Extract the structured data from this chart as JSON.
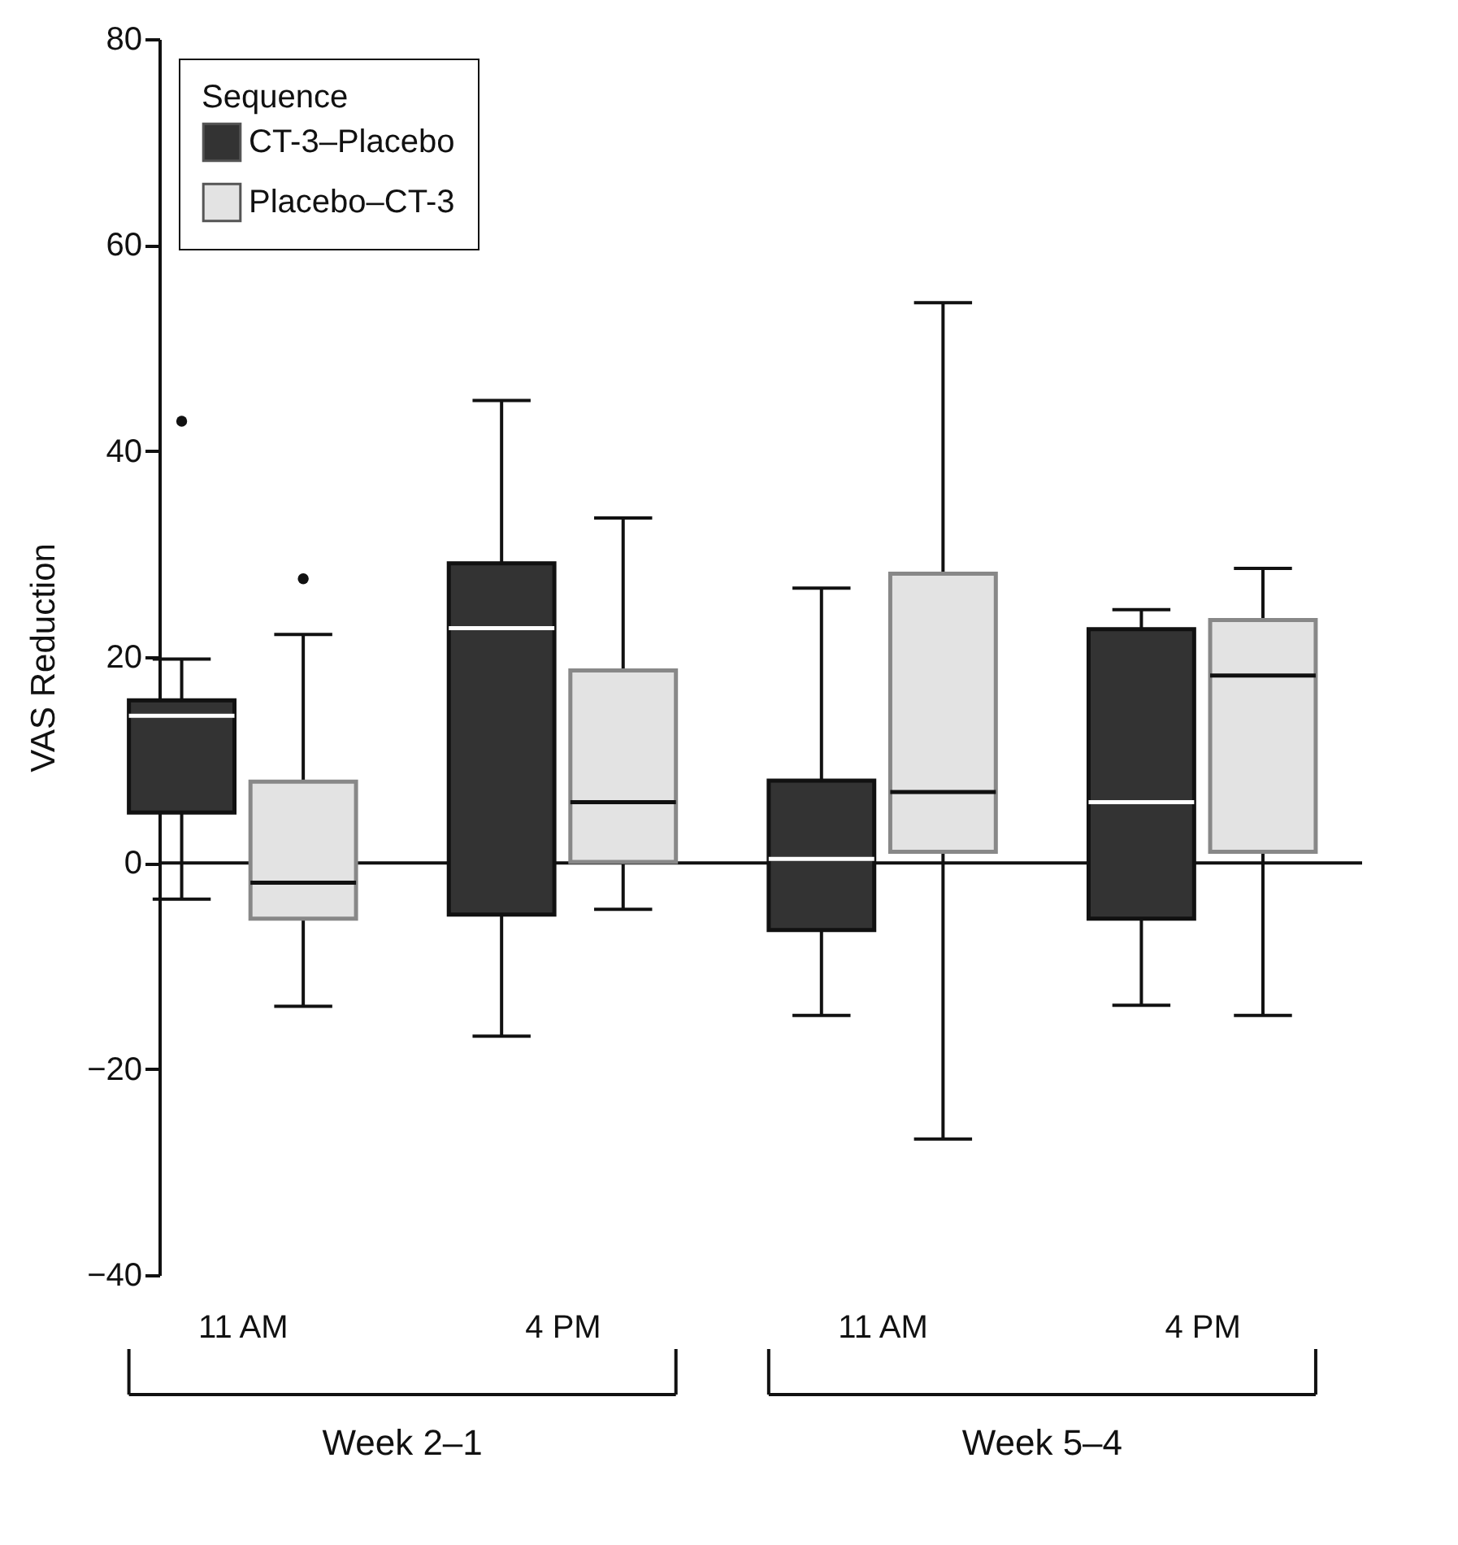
{
  "chart_data": {
    "type": "box",
    "ylabel": "VAS Reduction",
    "legend_title": "Sequence",
    "legend": "top left",
    "grid": false,
    "categories": [
      "11 AM",
      "4 PM",
      "11 AM",
      "4 PM"
    ],
    "annotations": [
      "Week 2–1",
      "Week 5–4"
    ],
    "ylim": [
      -40,
      80
    ],
    "yticks": [
      -40,
      -20,
      0,
      20,
      40,
      60,
      80
    ],
    "ref_lines": [
      {
        "axis": "y",
        "value": 0
      }
    ],
    "series": [
      {
        "name": "CT-3–Placebo",
        "color": "#333333",
        "boxes": [
          {
            "low": -3.5,
            "q1": 4.9,
            "median": 14.3,
            "q3": 15.8,
            "high": 19.8,
            "outliers": [
              42.9
            ]
          },
          {
            "low": -16.8,
            "q1": -5.0,
            "median": 22.8,
            "q3": 29.1,
            "high": 44.9
          },
          {
            "low": -14.8,
            "q1": -6.5,
            "median": 0.4,
            "q3": 8.0,
            "high": 26.7
          },
          {
            "low": -13.8,
            "q1": -5.4,
            "median": 5.9,
            "q3": 22.7,
            "high": 24.6
          }
        ]
      },
      {
        "name": "Placebo–CT-3",
        "color": "#e3e3e3",
        "boxes": [
          {
            "low": -13.9,
            "q1": -5.4,
            "median": -1.9,
            "q3": 7.9,
            "high": 22.2,
            "outliers": [
              27.6
            ]
          },
          {
            "low": -4.5,
            "q1": 0.1,
            "median": 5.9,
            "q3": 18.7,
            "high": 33.5
          },
          {
            "low": -26.8,
            "q1": 1.1,
            "median": 6.9,
            "q3": 28.1,
            "high": 54.4
          },
          {
            "low": -14.8,
            "q1": 1.1,
            "median": 18.2,
            "q3": 23.6,
            "high": 28.6
          }
        ]
      }
    ]
  }
}
